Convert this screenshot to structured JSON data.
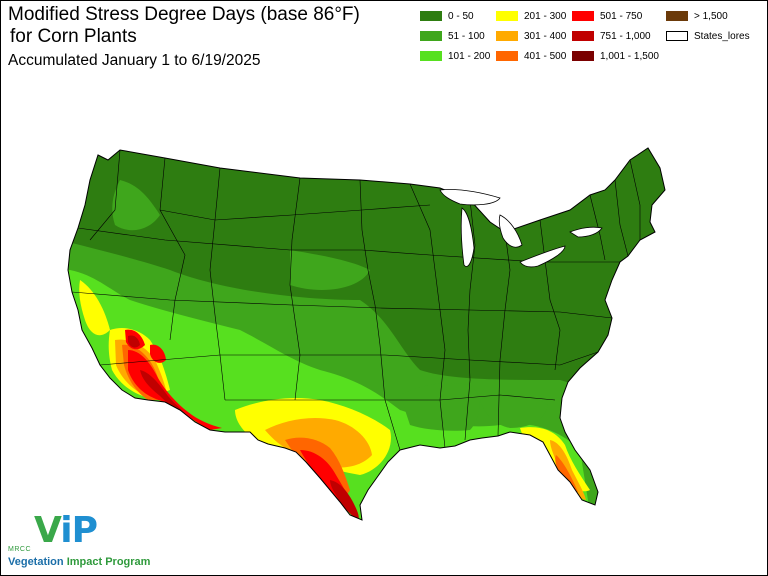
{
  "title_line1": "Modified Stress Degree Days (base 86°F)",
  "title_line2": " for Corn Plants",
  "subtitle": "Accumulated January 1 to 6/19/2025",
  "legend": [
    {
      "label": "0 - 50",
      "color": "#2e7d11"
    },
    {
      "label": "51 - 100",
      "color": "#3fa61c"
    },
    {
      "label": "101 - 200",
      "color": "#57e01f"
    },
    {
      "label": "201 - 300",
      "color": "#ffff00"
    },
    {
      "label": "301 - 400",
      "color": "#ffaa00"
    },
    {
      "label": "401 - 500",
      "color": "#ff6600"
    },
    {
      "label": "501 - 750",
      "color": "#ff0000"
    },
    {
      "label": "751 - 1,000",
      "color": "#c00000"
    },
    {
      "label": "1,001 - 1,500",
      "color": "#7a0000"
    },
    {
      "label": "> 1,500",
      "color": "#6b3a0a"
    },
    {
      "label": "States_lores",
      "color": "#ffffff"
    }
  ],
  "logo": {
    "org": "MRCC",
    "mark_v": "V",
    "mark_ip": "iP",
    "program_part1": "Vegetation ",
    "program_part2": "Impact Program"
  }
}
